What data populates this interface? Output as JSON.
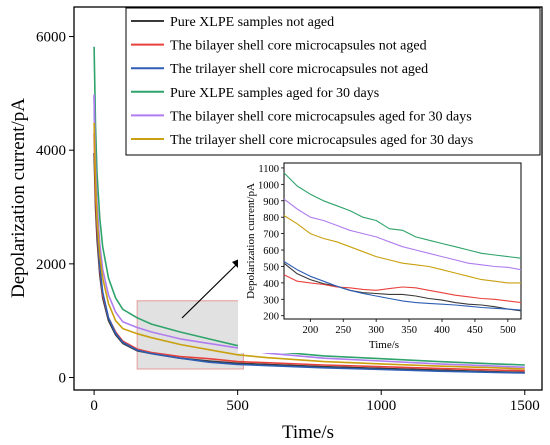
{
  "chart_data": [
    {
      "type": "line",
      "xlabel": "Time/s",
      "ylabel": "Depolarization current/pA",
      "xlim": [
        -70,
        1560
      ],
      "ylim": [
        -220,
        6520
      ],
      "xticks": [
        "0",
        "500",
        "1000",
        "1500"
      ],
      "yticks": [
        "0",
        "2000",
        "4000",
        "6000"
      ],
      "grid": false,
      "legend_position": "top-right",
      "highlight_region": {
        "x": [
          150,
          520
        ],
        "y": [
          150,
          1350
        ]
      },
      "series": [
        {
          "name": "Pure XLPE samples not aged",
          "color": "#3a3a3a",
          "x": [
            0,
            5,
            10,
            20,
            30,
            50,
            75,
            100,
            150,
            200,
            300,
            400,
            500,
            600,
            800,
            1000,
            1200,
            1400,
            1500
          ],
          "y": [
            3950,
            3000,
            2450,
            1800,
            1400,
            1000,
            750,
            600,
            470,
            420,
            340,
            290,
            250,
            230,
            190,
            160,
            130,
            100,
            90
          ]
        },
        {
          "name": "The bilayer shell core microcapsules not aged",
          "color": "#e8413c",
          "x": [
            0,
            5,
            10,
            20,
            30,
            50,
            75,
            100,
            150,
            200,
            300,
            400,
            500,
            600,
            800,
            1000,
            1200,
            1400,
            1500
          ],
          "y": [
            4300,
            3200,
            2600,
            1900,
            1450,
            1050,
            800,
            640,
            500,
            440,
            370,
            330,
            280,
            260,
            220,
            190,
            160,
            130,
            120
          ]
        },
        {
          "name": "The trilayer shell core microcapsules not aged",
          "color": "#2e5eb4",
          "x": [
            0,
            5,
            10,
            20,
            30,
            50,
            75,
            100,
            150,
            200,
            300,
            400,
            500,
            600,
            800,
            1000,
            1200,
            1400,
            1500
          ],
          "y": [
            4950,
            3600,
            2750,
            1950,
            1500,
            1050,
            780,
            620,
            480,
            420,
            340,
            270,
            230,
            210,
            170,
            140,
            110,
            90,
            80
          ]
        },
        {
          "name": "Pure XLPE samples aged for 30 days",
          "color": "#2ea36a",
          "x": [
            0,
            5,
            10,
            20,
            30,
            50,
            75,
            100,
            150,
            200,
            300,
            400,
            500,
            600,
            800,
            1000,
            1200,
            1400,
            1500
          ],
          "y": [
            5820,
            4450,
            3600,
            2800,
            2300,
            1750,
            1400,
            1200,
            1050,
            940,
            800,
            680,
            560,
            470,
            380,
            330,
            280,
            240,
            220
          ]
        },
        {
          "name": "The bilayer shell core microcapsules aged  for 30 days",
          "color": "#b07cf0",
          "x": [
            0,
            5,
            10,
            20,
            30,
            50,
            75,
            100,
            150,
            200,
            300,
            400,
            500,
            600,
            800,
            1000,
            1200,
            1400,
            1500
          ],
          "y": [
            4980,
            3800,
            3050,
            2350,
            1900,
            1450,
            1150,
            980,
            880,
            800,
            680,
            600,
            520,
            430,
            340,
            290,
            240,
            200,
            180
          ]
        },
        {
          "name": "The trilayer shell core microcapsules aged  for 30 days",
          "color": "#c9a00f",
          "x": [
            0,
            5,
            10,
            20,
            30,
            50,
            75,
            100,
            150,
            200,
            300,
            400,
            500,
            600,
            800,
            1000,
            1200,
            1400,
            1500
          ],
          "y": [
            4480,
            3450,
            2800,
            2150,
            1750,
            1300,
            1000,
            860,
            770,
            700,
            580,
            490,
            400,
            350,
            280,
            240,
            200,
            170,
            150
          ]
        }
      ]
    },
    {
      "type": "line",
      "xlabel": "Time/s",
      "ylabel": "Depolarization current/pA",
      "xlim": [
        160,
        520
      ],
      "ylim": [
        180,
        1130
      ],
      "xticks": [
        "200",
        "250",
        "300",
        "350",
        "400",
        "450",
        "500"
      ],
      "yticks": [
        "200",
        "300",
        "400",
        "500",
        "600",
        "700",
        "800",
        "900",
        "1000",
        "1100"
      ],
      "series": [
        {
          "name": "Pure XLPE samples not aged",
          "color": "#3a3a3a",
          "x": [
            160,
            180,
            200,
            220,
            240,
            260,
            280,
            300,
            320,
            340,
            360,
            380,
            400,
            420,
            440,
            460,
            480,
            500,
            520
          ],
          "y": [
            520,
            455,
            420,
            395,
            380,
            355,
            340,
            335,
            330,
            330,
            320,
            305,
            295,
            280,
            270,
            265,
            255,
            240,
            230
          ]
        },
        {
          "name": "The bilayer shell core microcapsules not aged",
          "color": "#e8413c",
          "x": [
            160,
            180,
            200,
            220,
            240,
            260,
            280,
            300,
            320,
            340,
            360,
            380,
            400,
            420,
            440,
            460,
            480,
            500,
            520
          ],
          "y": [
            450,
            410,
            400,
            390,
            375,
            370,
            360,
            355,
            365,
            375,
            370,
            355,
            340,
            325,
            315,
            305,
            300,
            290,
            280
          ]
        },
        {
          "name": "The trilayer shell core microcapsules not aged",
          "color": "#2e5eb4",
          "x": [
            160,
            180,
            200,
            220,
            240,
            260,
            280,
            300,
            320,
            340,
            360,
            380,
            400,
            420,
            440,
            460,
            480,
            500,
            520
          ],
          "y": [
            530,
            480,
            440,
            410,
            380,
            355,
            335,
            320,
            305,
            290,
            280,
            275,
            270,
            265,
            258,
            250,
            245,
            240,
            235
          ]
        },
        {
          "name": "Pure XLPE samples aged for 30 days",
          "color": "#2ea36a",
          "x": [
            160,
            180,
            200,
            220,
            240,
            260,
            280,
            300,
            320,
            340,
            360,
            380,
            400,
            420,
            440,
            460,
            480,
            500,
            520
          ],
          "y": [
            1070,
            990,
            940,
            900,
            870,
            840,
            800,
            780,
            730,
            720,
            680,
            660,
            640,
            620,
            600,
            580,
            570,
            560,
            550
          ]
        },
        {
          "name": "The bilayer shell core microcapsules aged  for 30 days",
          "color": "#b07cf0",
          "x": [
            160,
            180,
            200,
            220,
            240,
            260,
            280,
            300,
            320,
            340,
            360,
            380,
            400,
            420,
            440,
            460,
            480,
            500,
            520
          ],
          "y": [
            910,
            850,
            800,
            780,
            750,
            720,
            700,
            680,
            650,
            620,
            600,
            580,
            560,
            540,
            520,
            510,
            500,
            495,
            480
          ]
        },
        {
          "name": "The trilayer shell core microcapsules aged  for 30 days",
          "color": "#c9a00f",
          "x": [
            160,
            180,
            200,
            220,
            240,
            260,
            280,
            300,
            320,
            340,
            360,
            380,
            400,
            420,
            440,
            460,
            480,
            500,
            520
          ],
          "y": [
            810,
            760,
            700,
            670,
            650,
            620,
            590,
            560,
            540,
            520,
            510,
            500,
            480,
            460,
            440,
            420,
            410,
            400,
            400
          ]
        }
      ]
    }
  ]
}
